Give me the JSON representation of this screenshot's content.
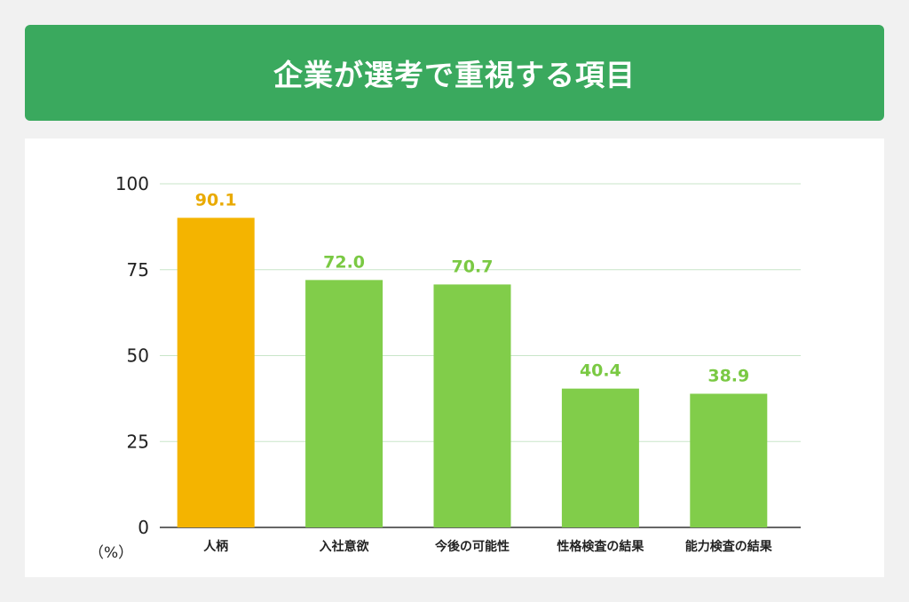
{
  "title": "企業が選考で重視する項目",
  "chart_data": {
    "type": "bar",
    "title": "企業が選考で重視する項目",
    "categories": [
      "人柄",
      "入社意欲",
      "今後の可能性",
      "性格検査の結果",
      "能力検査の結果"
    ],
    "values": [
      90.1,
      72.0,
      70.7,
      40.4,
      38.9
    ],
    "value_labels": [
      "90.1",
      "72.0",
      "70.7",
      "40.4",
      "38.9"
    ],
    "ylabel": "（%）",
    "ylim": [
      0,
      100
    ],
    "yticks": [
      0,
      25,
      50,
      75,
      100
    ],
    "grid": true,
    "colors": {
      "highlight": "#f4b400",
      "default": "#81cd4a",
      "highlight_label": "#e9aa00",
      "default_label": "#7ac943",
      "title_bg": "#3aa95e"
    },
    "highlight_index": 0
  }
}
